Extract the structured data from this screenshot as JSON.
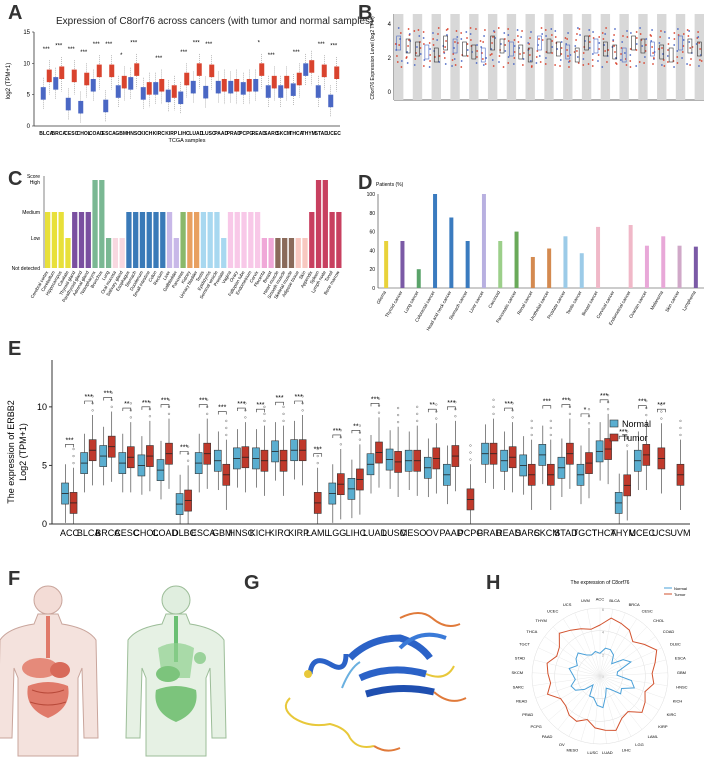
{
  "figure": {
    "panels": {
      "A": {
        "label": "A",
        "title": "Expression of C8orf76 across cancers (with tumor and normal samples)",
        "ylabel": "log2 (TPM+1)",
        "xlabel": "TCGA samples",
        "yticks": [
          "15",
          "10",
          "5",
          "0"
        ],
        "categories": [
          "BLCA",
          "BRCA",
          "CESC",
          "CHOL",
          "COAD",
          "ESCA",
          "GBM",
          "HNSC",
          "KICH",
          "KIRC",
          "KIRP",
          "LIHC",
          "LUAD",
          "LUSC",
          "PAAD",
          "PRAD",
          "PCPG",
          "READ",
          "SARC",
          "SKCM",
          "THCA",
          "THYM",
          "STAD",
          "UCEC"
        ],
        "sig": [
          "***",
          "***",
          "***",
          "***",
          "***",
          "***",
          "*",
          "***",
          "",
          "***",
          "",
          "***",
          "***",
          "***",
          "",
          "",
          "",
          "*",
          "***",
          "",
          "***",
          "",
          "***",
          "***"
        ]
      },
      "B": {
        "label": "B",
        "ylabel": "C8orf76 Expression Level (log2 TPM)",
        "yticks": [
          "4",
          "2",
          "0"
        ]
      },
      "C": {
        "label": "C",
        "yticks": [
          "Score",
          "High",
          "Medium",
          "Low",
          "Not detected"
        ],
        "categories": [
          "Cerebral cortex",
          "Cerebellum",
          "Hippocampus",
          "Caudate",
          "Thyroid gland",
          "Parathyroid gland",
          "Adrenal gland",
          "Nasopharynx",
          "Bronchus",
          "Lung",
          "Oral mucosa",
          "Salivary gland",
          "Esophagus",
          "Stomach",
          "Duodenum",
          "Small intestine",
          "Colon",
          "Rectum",
          "Liver",
          "Gallbladder",
          "Pancreas",
          "Kidney",
          "Urinary bladder",
          "Testis",
          "Epididymis",
          "Seminal vesicle",
          "Prostate",
          "Vagina",
          "Ovary",
          "Fallopian tube",
          "Endometrium",
          "Cervix",
          "Placenta",
          "Breast",
          "Heart muscle",
          "Smooth muscle",
          "Skeletal muscle",
          "Adipose tissue",
          "Skin",
          "Appendix",
          "Spleen",
          "Lymph node",
          "Tonsil",
          "Bone marrow"
        ],
        "levels": [
          2,
          2,
          2,
          1,
          2,
          2,
          2,
          3,
          3,
          1,
          1,
          1,
          2,
          2,
          2,
          2,
          2,
          2,
          2,
          1,
          2,
          2,
          2,
          2,
          2,
          2,
          1,
          2,
          2,
          2,
          2,
          2,
          1,
          1,
          1,
          1,
          1,
          1,
          1,
          2,
          3,
          3,
          2,
          2
        ]
      },
      "D": {
        "label": "D",
        "yaxis_title": "Patients (%)",
        "yticks": [
          "100",
          "80",
          "60",
          "40",
          "20",
          "0"
        ],
        "categories": [
          "Glioma",
          "Thyroid cancer",
          "Lung cancer",
          "Colorectal cancer",
          "Head and neck cancer",
          "Stomach cancer",
          "Liver cancer",
          "Carcinoid",
          "Pancreatic cancer",
          "Renal cancer",
          "Urothelial cancer",
          "Prostate cancer",
          "Testis cancer",
          "Breast cancer",
          "Cervical cancer",
          "Endometrial cancer",
          "Ovarian cancer",
          "Melanoma",
          "Skin cancer",
          "Lymphoma"
        ],
        "values": [
          50,
          50,
          20,
          100,
          75,
          50,
          100,
          50,
          60,
          33,
          42,
          55,
          37,
          65,
          0,
          67,
          45,
          55,
          45,
          44
        ],
        "colors": [
          "#e8d23a",
          "#7b5aa6",
          "#5aa36a",
          "#3a7bbf",
          "#3a7bbf",
          "#3a7bbf",
          "#b8b0e0",
          "#9ccf8a",
          "#6aaa5a",
          "#d48a50",
          "#d48a50",
          "#9ccbe8",
          "#9ccbe8",
          "#f0b8c8",
          "#f0b8c8",
          "#f0b8c8",
          "#e8a8d8",
          "#e8a8d8",
          "#d0a8c8",
          "#7b5aa6"
        ]
      },
      "E": {
        "label": "E",
        "ylabel_line1": "The expression of ERBB2",
        "ylabel_line2": "Log2 (TPM+1)",
        "yticks": [
          "10",
          "5",
          "0"
        ],
        "legend_normal": "Normal",
        "legend_tumor": "Tumor",
        "categories": [
          "ACC",
          "BLCA",
          "BRCA",
          "CESC",
          "CHOL",
          "COAD",
          "DLBC",
          "ESCA",
          "GBM",
          "HNSC",
          "KICH",
          "KIRC",
          "KIRP",
          "LAML",
          "LGG",
          "LIHC",
          "LUAD",
          "LUSC",
          "MESO",
          "OV",
          "PAAD",
          "PCPG",
          "PRAD",
          "READ",
          "SARC",
          "SKCM",
          "STAD",
          "TGCT",
          "THCA",
          "THYM",
          "UCEC",
          "UCS",
          "UVM"
        ],
        "sig": [
          "***",
          "***",
          "***",
          "**",
          "***",
          "***",
          "***",
          "***",
          "***",
          "***",
          "***",
          "***",
          "***",
          "***",
          "***",
          "**",
          "***",
          "",
          "",
          "**",
          "***",
          "",
          "",
          "***",
          "",
          "***",
          "***",
          "*",
          "***",
          "***",
          "***",
          "***",
          ""
        ]
      },
      "F": {
        "label": "F"
      },
      "G": {
        "label": "G"
      },
      "H": {
        "label": "H",
        "title": "The expression of C8orf76",
        "legend_normal": "Normal",
        "legend_tumor": "Tumor",
        "categories": [
          "ACC",
          "BLCA",
          "BRCA",
          "CESC",
          "CHOL",
          "COAD",
          "DLBC",
          "ESCA",
          "GBM",
          "HNSC",
          "KICH",
          "KIRC",
          "KIRP",
          "LAML",
          "LGG",
          "LIHC",
          "LUAD",
          "LUSC",
          "MESO",
          "OV",
          "PAAD",
          "PCPG",
          "PRAD",
          "READ",
          "SARC",
          "SKCM",
          "STAD",
          "TGCT",
          "THCA",
          "THYM",
          "UCEC",
          "UCS",
          "UVM"
        ],
        "rticks": [
          "0",
          "2",
          "4",
          "6"
        ]
      }
    },
    "colors": {
      "tumor": "#d9432e",
      "normal": "#4a67c4",
      "e_normal": "#5aaed0",
      "e_tumor": "#c0392b",
      "radar_tumor": "#d2522e",
      "radar_normal": "#4aa0d8"
    }
  },
  "chart_data": [
    {
      "type": "box",
      "panel": "A",
      "title": "Expression of C8orf76 across cancers (with tumor and normal samples)",
      "xlabel": "TCGA samples",
      "ylabel": "log2 (TPM+1)",
      "ylim": [
        0,
        15
      ],
      "categories": [
        "BLCA",
        "BRCA",
        "CESC",
        "CHOL",
        "COAD",
        "ESCA",
        "GBM",
        "HNSC",
        "KICH",
        "KIRC",
        "KIRP",
        "LIHC",
        "LUAD",
        "LUSC",
        "PAAD",
        "PRAD",
        "PCPG",
        "READ",
        "SARC",
        "SKCM",
        "THCA",
        "THYM",
        "STAD",
        "UCEC"
      ],
      "series": [
        {
          "name": "Normal",
          "values": [
            5.2,
            6.8,
            3.5,
            3.0,
            6.5,
            3.2,
            5.5,
            6.8,
            5.2,
            6.0,
            4.8,
            4.5,
            6.2,
            5.4,
            6.2,
            6.2,
            6.0,
            6.5,
            5.5,
            5.5,
            5.8,
            9.0,
            5.5,
            4.0
          ]
        },
        {
          "name": "Tumor",
          "values": [
            8.0,
            8.5,
            8.0,
            7.5,
            8.8,
            8.8,
            7.0,
            9.0,
            6.0,
            6.5,
            5.5,
            7.5,
            9.0,
            8.8,
            6.5,
            6.5,
            6.5,
            9.0,
            7.0,
            7.0,
            7.5,
            9.5,
            8.8,
            8.5
          ]
        }
      ]
    },
    {
      "type": "bar",
      "panel": "C",
      "ylabel": "Score",
      "yticks": [
        "High",
        "Medium",
        "Low",
        "Not detected"
      ],
      "categories": [
        "Cerebral cortex",
        "Cerebellum",
        "Hippocampus",
        "Caudate",
        "Thyroid gland",
        "Parathyroid gland",
        "Adrenal gland",
        "Nasopharynx",
        "Bronchus",
        "Lung",
        "Oral mucosa",
        "Salivary gland",
        "Esophagus",
        "Stomach",
        "Duodenum",
        "Small intestine",
        "Colon",
        "Rectum",
        "Liver",
        "Gallbladder",
        "Pancreas",
        "Kidney",
        "Urinary bladder",
        "Testis",
        "Epididymis",
        "Seminal vesicle",
        "Prostate",
        "Vagina",
        "Ovary",
        "Fallopian tube",
        "Endometrium",
        "Cervix",
        "Placenta",
        "Breast",
        "Heart muscle",
        "Smooth muscle",
        "Skeletal muscle",
        "Adipose tissue",
        "Skin",
        "Appendix",
        "Spleen",
        "Lymph node",
        "Tonsil",
        "Bone marrow"
      ],
      "values": [
        2,
        2,
        2,
        1,
        2,
        2,
        2,
        3,
        3,
        1,
        1,
        1,
        2,
        2,
        2,
        2,
        2,
        2,
        2,
        1,
        2,
        2,
        2,
        2,
        2,
        2,
        1,
        2,
        2,
        2,
        2,
        2,
        1,
        1,
        1,
        1,
        1,
        1,
        1,
        2,
        3,
        3,
        2,
        2
      ]
    },
    {
      "type": "bar",
      "panel": "D",
      "ylabel": "Patients (%)",
      "ylim": [
        0,
        100
      ],
      "categories": [
        "Glioma",
        "Thyroid cancer",
        "Lung cancer",
        "Colorectal cancer",
        "Head and neck cancer",
        "Stomach cancer",
        "Liver cancer",
        "Carcinoid",
        "Pancreatic cancer",
        "Renal cancer",
        "Urothelial cancer",
        "Prostate cancer",
        "Testis cancer",
        "Breast cancer",
        "Cervical cancer",
        "Endometrial cancer",
        "Ovarian cancer",
        "Melanoma",
        "Skin cancer",
        "Lymphoma"
      ],
      "values": [
        50,
        50,
        20,
        100,
        75,
        50,
        100,
        50,
        60,
        33,
        42,
        55,
        37,
        65,
        0,
        67,
        45,
        55,
        45,
        44
      ]
    },
    {
      "type": "box",
      "panel": "E",
      "ylabel": "The expression of ERBB2 Log2 (TPM+1)",
      "ylim": [
        0,
        14
      ],
      "categories": [
        "ACC",
        "BLCA",
        "BRCA",
        "CESC",
        "CHOL",
        "COAD",
        "DLBC",
        "ESCA",
        "GBM",
        "HNSC",
        "KICH",
        "KIRC",
        "KIRP",
        "LAML",
        "LGG",
        "LIHC",
        "LUAD",
        "LUSC",
        "MESO",
        "OV",
        "PAAD",
        "PCPG",
        "PRAD",
        "READ",
        "SARC",
        "SKCM",
        "STAD",
        "TGCT",
        "THCA",
        "THYM",
        "UCEC",
        "UCS",
        "UVM"
      ],
      "series": [
        {
          "name": "Normal",
          "values": [
            2.6,
            5.2,
            5.8,
            5.2,
            5.0,
            4.6,
            1.7,
            5.2,
            5.4,
            5.6,
            5.6,
            6.2,
            6.3,
            null,
            2.6,
            3.0,
            5.1,
            5.5,
            5.4,
            4.8,
            4.2,
            null,
            6.0,
            5.4,
            5.0,
            5.9,
            4.8,
            4.2,
            6.2,
            1.8,
            5.4,
            null,
            null
          ]
        },
        {
          "name": "Tumor",
          "values": [
            1.8,
            6.3,
            6.6,
            5.7,
            5.8,
            6.0,
            2.0,
            6.0,
            4.2,
            5.7,
            5.4,
            5.4,
            6.3,
            1.8,
            3.4,
            3.8,
            6.1,
            5.3,
            5.4,
            5.6,
            5.8,
            2.1,
            6.0,
            5.7,
            4.2,
            4.2,
            6.0,
            5.2,
            6.4,
            3.3,
            5.9,
            5.6,
            4.2
          ]
        }
      ]
    },
    {
      "type": "radar",
      "panel": "H",
      "title": "The expression of C8orf76",
      "rlim": [
        0,
        6
      ],
      "categories": [
        "ACC",
        "BLCA",
        "BRCA",
        "CESC",
        "CHOL",
        "COAD",
        "DLBC",
        "ESCA",
        "GBM",
        "HNSC",
        "KICH",
        "KIRC",
        "KIRP",
        "LAML",
        "LGG",
        "LIHC",
        "LUAD",
        "LUSC",
        "MESO",
        "OV",
        "PAAD",
        "PCPG",
        "PRAD",
        "READ",
        "SARC",
        "SKCM",
        "STAD",
        "TGCT",
        "THCA",
        "THYM",
        "UCEC",
        "UCS",
        "UVM"
      ],
      "series": [
        {
          "name": "Normal",
          "values": [
            2.0,
            2.5,
            2.5,
            2.2,
            1.5,
            2.5,
            3.0,
            1.6,
            1.5,
            2.8,
            3.2,
            2.2,
            2.4,
            1.5,
            1.2,
            1.8,
            2.8,
            2.6,
            2.0,
            2.0,
            1.0,
            1.8,
            2.5,
            2.7,
            2.2,
            2.4,
            2.8,
            2.2,
            2.6,
            2.8,
            2.2,
            2.0,
            2.2
          ]
        },
        {
          "name": "Tumor",
          "values": [
            4.5,
            5.2,
            5.0,
            4.8,
            4.2,
            4.8,
            5.5,
            5.0,
            4.6,
            4.8,
            4.2,
            4.6,
            4.9,
            4.0,
            4.2,
            5.0,
            4.8,
            4.6,
            4.0,
            4.5,
            4.4,
            4.0,
            4.0,
            4.9,
            4.4,
            4.6,
            4.8,
            4.2,
            4.4,
            5.2,
            4.8,
            4.5,
            4.2
          ]
        }
      ]
    }
  ]
}
